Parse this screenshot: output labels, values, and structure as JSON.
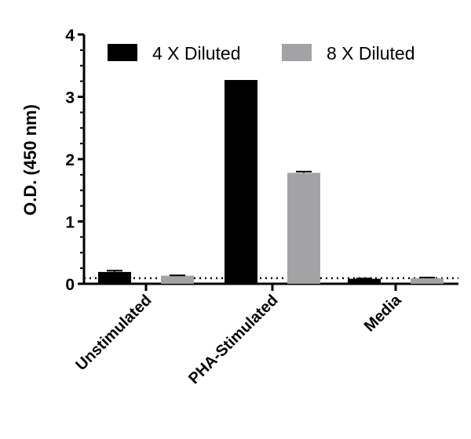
{
  "chart_data": {
    "type": "bar",
    "ylabel": "O.D. (450 nm)",
    "xlabel": "",
    "categories": [
      "Unstimulated",
      "PHA-Stimulated",
      "Media"
    ],
    "series": [
      {
        "name": "4 X Diluted",
        "values": [
          0.19,
          3.27,
          0.08
        ],
        "errors": [
          0.02,
          0.0,
          0.005
        ],
        "color": "#000000"
      },
      {
        "name": "8 X Diluted",
        "values": [
          0.13,
          1.78,
          0.09
        ],
        "errors": [
          0.005,
          0.02,
          0.01
        ],
        "color": "#a3a3a6"
      }
    ],
    "ylim": [
      0,
      4
    ],
    "yticks": [
      "0",
      "1",
      "2",
      "3",
      "4"
    ],
    "threshold": 0.09,
    "legend_position": "top",
    "grid": false
  }
}
